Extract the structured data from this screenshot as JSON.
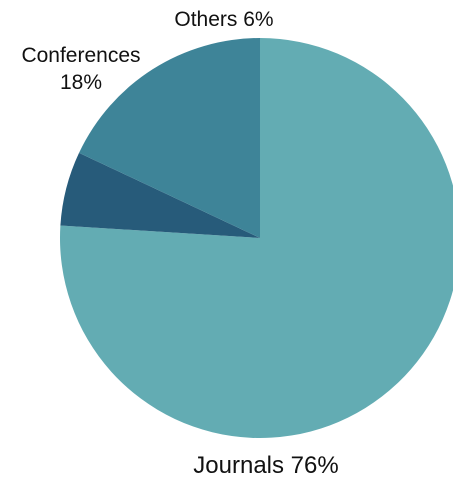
{
  "chart_data": {
    "type": "pie",
    "title": "",
    "slices": [
      {
        "label": "Journals",
        "value": 76,
        "value_label": "76%",
        "color": "#63acb3"
      },
      {
        "label": "Others",
        "value": 6,
        "value_label": "6%",
        "color": "#275b7a"
      },
      {
        "label": "Conferences",
        "value": 18,
        "value_label": "18%",
        "color": "#3e8498"
      }
    ]
  }
}
